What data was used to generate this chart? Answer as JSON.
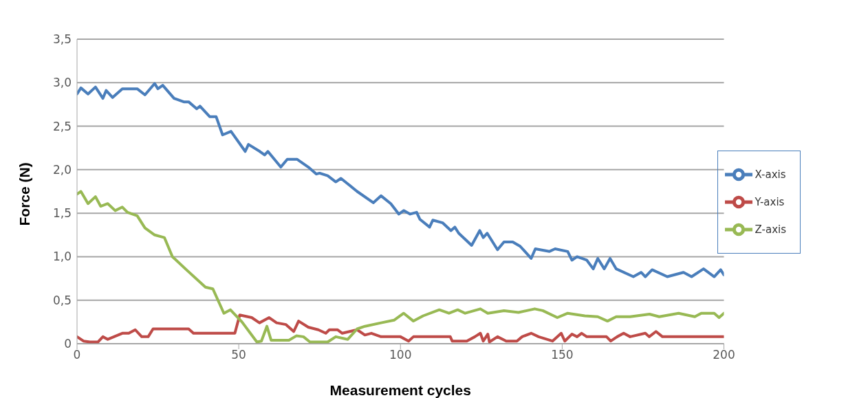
{
  "chart_data": {
    "type": "line",
    "xlabel": "Measurement cycles",
    "ylabel": "Force (N)",
    "xlim": [
      0,
      200
    ],
    "xticks": [
      0,
      50,
      100,
      150,
      200
    ],
    "ylim": [
      0,
      3.5
    ],
    "yticks": [
      {
        "value": 0,
        "label": "0"
      },
      {
        "value": 0.5,
        "label": "0,5"
      },
      {
        "value": 1,
        "label": "1,0"
      },
      {
        "value": 1.5,
        "label": "1,5"
      },
      {
        "value": 2,
        "label": "2,0"
      },
      {
        "value": 2.5,
        "label": "2,5"
      },
      {
        "value": 3,
        "label": "3,0"
      },
      {
        "value": 3.5,
        "label": "3,5"
      }
    ],
    "grid": "y",
    "legend": "right",
    "marker": "none",
    "line_style": "solid",
    "series": [
      {
        "name": "X-axis",
        "color": "#4a7ebb",
        "x": [
          0,
          1.2,
          3.4,
          5.7,
          8,
          9,
          11,
          14,
          18.6,
          21,
          24,
          25,
          26.5,
          30,
          33,
          34.5,
          37,
          38,
          41,
          43,
          45,
          47.6,
          52,
          53,
          56.5,
          58,
          59,
          63,
          65,
          68,
          71.5,
          74,
          75,
          77.5,
          80,
          81.6,
          86.6,
          91.6,
          94,
          97,
          99.5,
          101,
          103,
          105,
          106,
          109,
          110,
          113,
          115.6,
          116.8,
          118,
          122,
          124.5,
          125.6,
          126.8,
          130,
          132,
          134.7,
          137,
          140.4,
          141.7,
          146,
          147.8,
          151.7,
          153,
          154.6,
          157.6,
          159.6,
          161,
          163,
          164.8,
          166.7,
          172,
          174.4,
          175.7,
          177.8,
          182.5,
          187.5,
          190,
          193.7,
          197,
          199,
          200
        ],
        "values": [
          2.87,
          2.94,
          2.87,
          2.95,
          2.82,
          2.91,
          2.83,
          2.93,
          2.93,
          2.86,
          2.99,
          2.93,
          2.97,
          2.82,
          2.78,
          2.78,
          2.7,
          2.73,
          2.61,
          2.61,
          2.4,
          2.44,
          2.21,
          2.29,
          2.21,
          2.17,
          2.21,
          2.03,
          2.12,
          2.12,
          2.03,
          1.95,
          1.96,
          1.93,
          1.86,
          1.9,
          1.75,
          1.62,
          1.7,
          1.61,
          1.49,
          1.53,
          1.49,
          1.51,
          1.43,
          1.34,
          1.42,
          1.39,
          1.3,
          1.34,
          1.27,
          1.13,
          1.3,
          1.22,
          1.27,
          1.08,
          1.17,
          1.17,
          1.12,
          0.98,
          1.09,
          1.06,
          1.09,
          1.06,
          0.96,
          1.0,
          0.96,
          0.86,
          0.98,
          0.86,
          0.98,
          0.86,
          0.77,
          0.82,
          0.77,
          0.85,
          0.77,
          0.82,
          0.77,
          0.86,
          0.77,
          0.85,
          0.79
        ]
      },
      {
        "name": "Y-axis",
        "color": "#be4b48",
        "x": [
          0,
          2,
          4,
          6.5,
          8,
          9.5,
          14,
          16,
          18,
          20,
          22,
          23.5,
          34.5,
          36,
          48.8,
          50.3,
          54,
          56.4,
          59.4,
          61.7,
          64.6,
          67,
          68.5,
          71.5,
          74.6,
          76.9,
          78,
          80.5,
          82,
          86.6,
          89,
          91,
          94,
          100,
          102.5,
          104,
          115.4,
          116,
          120.5,
          123,
          124.7,
          125.6,
          127,
          127.5,
          130,
          132.7,
          136,
          137.6,
          140.4,
          142.7,
          147,
          149.7,
          150.8,
          153,
          154.6,
          156,
          157.6,
          163.7,
          165,
          167,
          169,
          171,
          175.7,
          176.9,
          179,
          181,
          200
        ],
        "values": [
          0.08,
          0.03,
          0.02,
          0.02,
          0.08,
          0.05,
          0.12,
          0.12,
          0.16,
          0.08,
          0.08,
          0.17,
          0.17,
          0.12,
          0.12,
          0.33,
          0.3,
          0.24,
          0.3,
          0.24,
          0.22,
          0.14,
          0.26,
          0.19,
          0.16,
          0.12,
          0.16,
          0.16,
          0.12,
          0.16,
          0.1,
          0.12,
          0.08,
          0.08,
          0.03,
          0.08,
          0.08,
          0.03,
          0.03,
          0.08,
          0.12,
          0.03,
          0.11,
          0.02,
          0.08,
          0.03,
          0.03,
          0.08,
          0.12,
          0.08,
          0.03,
          0.12,
          0.03,
          0.11,
          0.08,
          0.12,
          0.08,
          0.08,
          0.03,
          0.08,
          0.12,
          0.08,
          0.12,
          0.08,
          0.14,
          0.08,
          0.08
        ]
      },
      {
        "name": "Z-axis",
        "color": "#98b954",
        "x": [
          0,
          1.2,
          3.4,
          5.7,
          7.3,
          9.5,
          11.8,
          14,
          15.6,
          18.6,
          21,
          24,
          27,
          29.5,
          33.8,
          39.7,
          42,
          45.4,
          47.4,
          51,
          55.6,
          57,
          58.7,
          60,
          65.5,
          67.8,
          70,
          72,
          77.5,
          80,
          83.7,
          86.6,
          89,
          94,
          98,
          101,
          104,
          107,
          112,
          115,
          117.7,
          120,
          124.7,
          127,
          132,
          136.5,
          141.5,
          144,
          148.5,
          151.7,
          157,
          161,
          164,
          166.7,
          171,
          177,
          180,
          186,
          191,
          193,
          197,
          198.5,
          200
        ],
        "values": [
          1.72,
          1.75,
          1.61,
          1.69,
          1.58,
          1.61,
          1.53,
          1.57,
          1.51,
          1.47,
          1.33,
          1.25,
          1.22,
          1.0,
          0.85,
          0.65,
          0.63,
          0.35,
          0.39,
          0.25,
          0.02,
          0.03,
          0.2,
          0.04,
          0.04,
          0.09,
          0.08,
          0.02,
          0.02,
          0.08,
          0.05,
          0.17,
          0.2,
          0.24,
          0.27,
          0.35,
          0.26,
          0.32,
          0.39,
          0.35,
          0.39,
          0.35,
          0.4,
          0.35,
          0.38,
          0.36,
          0.4,
          0.38,
          0.3,
          0.35,
          0.32,
          0.31,
          0.26,
          0.31,
          0.31,
          0.34,
          0.31,
          0.35,
          0.31,
          0.35,
          0.35,
          0.3,
          0.35
        ]
      }
    ]
  }
}
